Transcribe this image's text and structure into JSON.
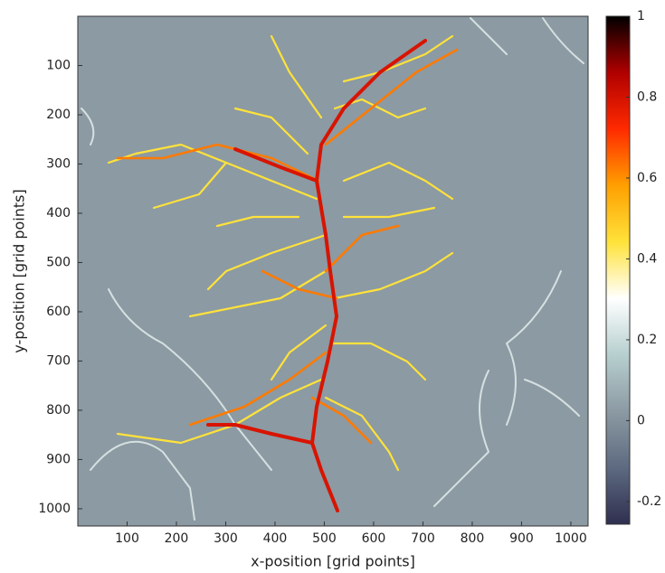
{
  "chart_data": {
    "type": "heatmap",
    "xlabel": "x-position [grid points]",
    "ylabel": "y-position [grid points]",
    "xlim": [
      0,
      1035
    ],
    "ylim": [
      0,
      1035
    ],
    "y_inverted": true,
    "xticks": [
      100,
      200,
      300,
      400,
      500,
      600,
      700,
      800,
      900,
      1000
    ],
    "yticks": [
      100,
      200,
      300,
      400,
      500,
      600,
      700,
      800,
      900,
      1000
    ],
    "background_color": "#8c9aa3",
    "clim": [
      -0.256,
      1
    ],
    "cticks": [
      1,
      0.8,
      0.6,
      0.4,
      0.2,
      0,
      -0.2
    ],
    "colorbar_colors": [
      "#2f2f4f",
      "#5d6a80",
      "#8c9aa3",
      "#b7cfcf",
      "#ffffff",
      "#ffe23a",
      "#ffa000",
      "#ff2a00",
      "#b00000",
      "#000000"
    ]
  }
}
